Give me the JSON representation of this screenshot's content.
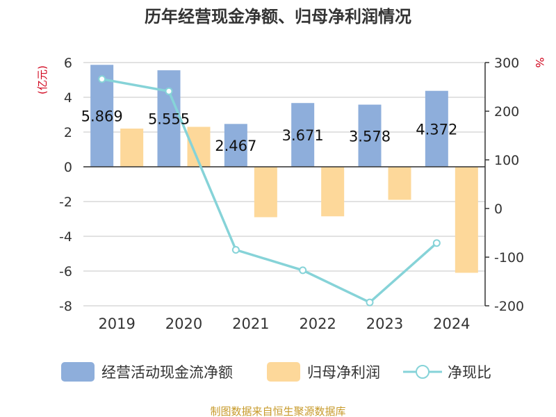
{
  "chart_data": {
    "type": "bar",
    "title": "历年经营现金净额、归母净利润情况",
    "categories": [
      "2019",
      "2020",
      "2021",
      "2022",
      "2023",
      "2024"
    ],
    "series": [
      {
        "name": "经营活动现金流净额",
        "kind": "bar",
        "axis": "left",
        "color": "#8eaedb",
        "values": [
          5.869,
          5.555,
          2.467,
          3.671,
          3.578,
          4.372
        ],
        "data_labels": [
          "5.869",
          "5.555",
          "2.467",
          "3.671",
          "3.578",
          "4.372"
        ]
      },
      {
        "name": "归母净利润",
        "kind": "bar",
        "axis": "left",
        "color": "#fdd89a",
        "values": [
          2.2,
          2.3,
          -2.9,
          -2.85,
          -1.9,
          -6.1
        ]
      },
      {
        "name": "净现比",
        "kind": "line",
        "axis": "right",
        "color": "#86d3d8",
        "values": [
          266,
          241,
          -85,
          -127,
          -193,
          -71
        ]
      }
    ],
    "y_left": {
      "unit": "(亿元)",
      "min": -8,
      "max": 6,
      "ticks": [
        "6",
        "4",
        "2",
        "0",
        "-2",
        "-4",
        "-6",
        "-8"
      ]
    },
    "y_right": {
      "unit": "%",
      "min": -200,
      "max": 300,
      "ticks": [
        "300",
        "200",
        "100",
        "0",
        "-100",
        "-200"
      ]
    },
    "grid": true,
    "legend_position": "bottom"
  },
  "legend": {
    "items": [
      "经营活动现金流净额",
      "归母净利润",
      "净现比"
    ]
  },
  "source": "制图数据来自恒生聚源数据库"
}
